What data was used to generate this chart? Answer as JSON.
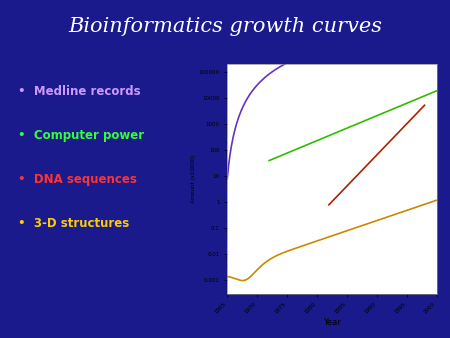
{
  "background_color": "#1A1A8C",
  "title": "Bioinformatics growth curves",
  "title_color": "#FFFFFF",
  "title_fontsize": 15,
  "bullet_items": [
    {
      "text": "Medline records",
      "color": "#CC99FF"
    },
    {
      "text": "Computer power",
      "color": "#33FF33"
    },
    {
      "text": "DNA sequences",
      "color": "#FF3333"
    },
    {
      "text": "3-D structures",
      "color": "#FFCC00"
    }
  ],
  "chart_bg": "#FFFFFF",
  "xmin": 1965,
  "xmax": 2000,
  "ymin": 0.0003,
  "ymax": 200000,
  "xlabel": "Year",
  "ylabel": "Amount (x10000)",
  "line_colors": {
    "medline": "#6633BB",
    "computer": "#33BB00",
    "dna": "#AA2200",
    "structures": "#CC8800"
  },
  "figwidth": 4.5,
  "figheight": 3.38,
  "fig_dpi": 100
}
